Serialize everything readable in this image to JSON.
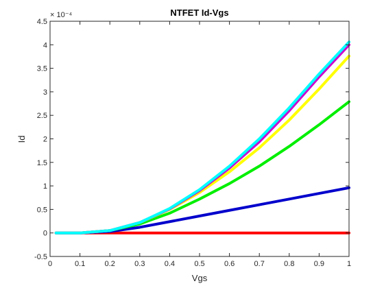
{
  "chart_data": {
    "type": "line",
    "title": "NTFET Id-Vgs",
    "xlabel": "Vgs",
    "ylabel": "Id",
    "y_exponent_label": "× 10⁻⁴",
    "xlim": [
      0,
      1
    ],
    "ylim": [
      -0.5,
      4.5
    ],
    "y_scale_factor": 0.0001,
    "x_ticks": [
      0,
      0.1,
      0.2,
      0.3,
      0.4,
      0.5,
      0.6,
      0.7,
      0.8,
      0.9,
      1
    ],
    "x_tick_labels": [
      "0",
      "0.1",
      "0.2",
      "0.3",
      "0.4",
      "0.5",
      "0.6",
      "0.7",
      "0.8",
      "0.9",
      "1"
    ],
    "y_ticks": [
      -0.5,
      0,
      0.5,
      1,
      1.5,
      2,
      2.5,
      3,
      3.5,
      4,
      4.5
    ],
    "y_tick_labels": [
      "-0.5",
      "0",
      "0.5",
      "1",
      "1.5",
      "2",
      "2.5",
      "3",
      "3.5",
      "4",
      "4.5"
    ],
    "grid": false,
    "x": [
      0.02,
      0.1,
      0.2,
      0.3,
      0.4,
      0.5,
      0.6,
      0.7,
      0.8,
      0.9,
      1.0
    ],
    "series": [
      {
        "color": "#ff0000",
        "values": [
          0,
          0,
          0,
          0,
          0,
          0,
          0,
          0,
          0,
          0,
          0
        ]
      },
      {
        "color": "#0000cc",
        "values": [
          0,
          0,
          0.03,
          0.12,
          0.24,
          0.36,
          0.48,
          0.6,
          0.72,
          0.84,
          0.96
        ]
      },
      {
        "color": "#00ee00",
        "values": [
          0,
          0,
          0.05,
          0.19,
          0.42,
          0.72,
          1.05,
          1.42,
          1.84,
          2.3,
          2.79
        ]
      },
      {
        "color": "#ffff00",
        "values": [
          0,
          0,
          0.05,
          0.22,
          0.5,
          0.86,
          1.3,
          1.81,
          2.4,
          3.06,
          3.76
        ]
      },
      {
        "color": "#cc00cc",
        "values": [
          0,
          0,
          0.05,
          0.22,
          0.51,
          0.9,
          1.38,
          1.94,
          2.6,
          3.32,
          4.0
        ]
      },
      {
        "color": "#00ffff",
        "values": [
          0,
          0,
          0.05,
          0.22,
          0.52,
          0.92,
          1.42,
          2.0,
          2.66,
          3.38,
          4.06
        ]
      }
    ]
  }
}
